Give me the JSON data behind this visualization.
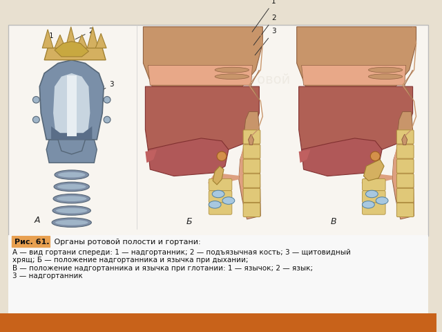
{
  "slide_bg": "#e8e0d0",
  "box_bg": "#f5f2ec",
  "box_border": "#bbbbbb",
  "bottom_bar_color": "#c8621a",
  "caption_label_bg": "#e8a050",
  "caption_label_text": "Рис. 61.",
  "caption_title": " Органы ротовой полости и гортани:",
  "caption_line1": "А — вид гортани спереди: 1 — надгортанник; 2 — подъязычная кость; 3 — щитовидный",
  "caption_line2": "хрящ; Б — положение надгортанника и язычка при дыхании;",
  "caption_line3": "В — положение надгортанника и язычка при глотании: 1 — язычок; 2 — язык;",
  "caption_line4": "3 — надгортанник",
  "label_A": "А",
  "label_B": "Б",
  "label_V": "В",
  "fig_width": 6.4,
  "fig_height": 4.8,
  "dpi": 100,
  "larynx_steel": "#7a8fa8",
  "larynx_steel_dark": "#556677",
  "larynx_light": "#a0b5c8",
  "hyoid_gold": "#d4b060",
  "hyoid_dark": "#a08030",
  "trachea_ring": "#8090a8",
  "skull_brown": "#b07850",
  "skull_tan": "#c8956a",
  "nasal_pink": "#d4907a",
  "mouth_red": "#b06055",
  "throat_light": "#dda080",
  "tongue_dark": "#a04040",
  "vert_yellow": "#e0c878",
  "vert_border": "#b09040",
  "blue_oval": "#a8c8e0",
  "epiglottis": "#d4b060",
  "uvula_pink": "#d09080",
  "pink_throat": "#e8b090",
  "inner_face_pink": "#e0a080"
}
